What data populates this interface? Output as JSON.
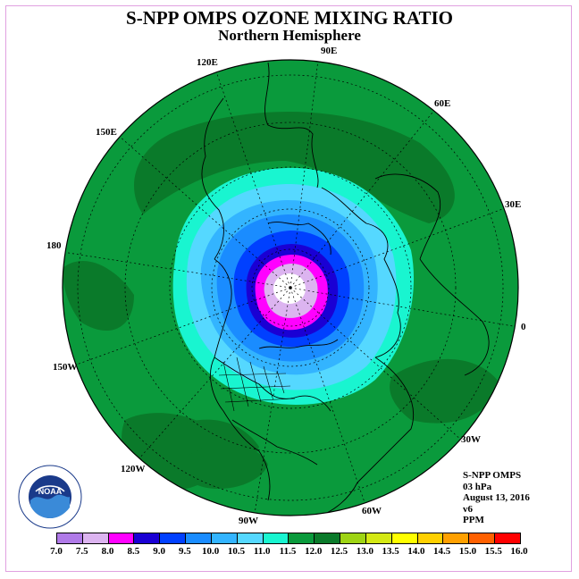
{
  "title": "S-NPP OMPS OZONE MIXING RATIO",
  "subtitle": "Northern Hemisphere",
  "longitude_labels": [
    "90E",
    "60E",
    "30E",
    "0",
    "30W",
    "60W",
    "90W",
    "120W",
    "150W",
    "180",
    "150E",
    "120E"
  ],
  "info": {
    "product": "S-NPP OMPS",
    "level": "03 hPa",
    "date": "August 13, 2016",
    "version": "v6",
    "units": "PPM"
  },
  "legend": {
    "labels": [
      "7.0",
      "7.5",
      "8.0",
      "8.5",
      "9.0",
      "9.5",
      "10.0",
      "10.5",
      "11.0",
      "11.5",
      "12.0",
      "12.5",
      "13.0",
      "13.5",
      "14.0",
      "14.5",
      "15.0",
      "15.5",
      "16.0"
    ],
    "colors": [
      "#b07ae8",
      "#dcb4f0",
      "#ff00ff",
      "#1a00d4",
      "#0040ff",
      "#1a8cff",
      "#33b4ff",
      "#55d8ff",
      "#19f5d0",
      "#0a9a3c",
      "#0a7a2a",
      "#9ed414",
      "#d4e814",
      "#ffff00",
      "#ffd000",
      "#ffa000",
      "#ff6000",
      "#ff0000",
      "#a05a3a"
    ]
  },
  "logo_text": "NOAA",
  "colors": {
    "background_field": "#0a9a3c",
    "dark_field": "#0a7a2a"
  }
}
